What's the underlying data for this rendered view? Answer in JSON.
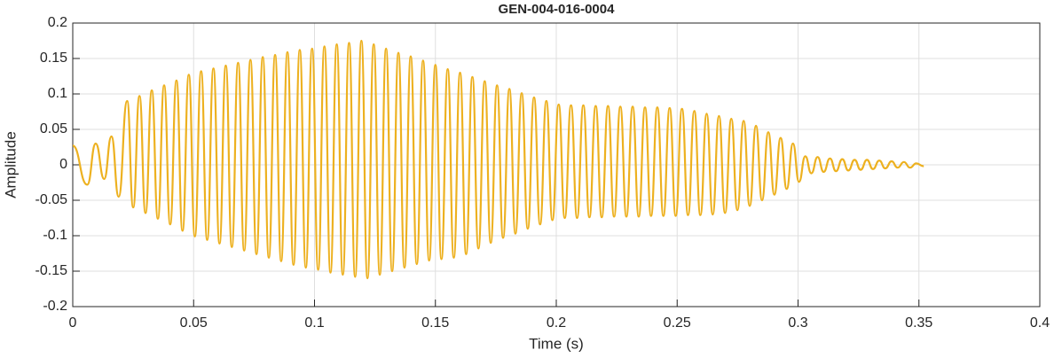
{
  "chart_data": {
    "type": "line",
    "title": "GEN-004-016-0004",
    "xlabel": "Time (s)",
    "ylabel": "Amplitude",
    "xlim": [
      0,
      0.4
    ],
    "xticks": [
      0,
      0.05,
      0.1,
      0.15,
      0.2,
      0.25,
      0.3,
      0.35,
      0.4
    ],
    "ylim": [
      -0.2,
      0.2
    ],
    "yticks": [
      -0.2,
      -0.15,
      -0.1,
      -0.05,
      0,
      0.05,
      0.1,
      0.15,
      0.2
    ],
    "grid": true,
    "series": [
      {
        "color": "#EDB120",
        "x": [
          0,
          0.006,
          0.0095,
          0.013,
          0.016,
          0.019,
          0.0225,
          0.025,
          0.0276,
          0.0301,
          0.0327,
          0.0352,
          0.0378,
          0.0403,
          0.0429,
          0.0454,
          0.048,
          0.0505,
          0.0531,
          0.0556,
          0.0582,
          0.0607,
          0.0633,
          0.0658,
          0.0684,
          0.0709,
          0.0735,
          0.076,
          0.0786,
          0.0811,
          0.0837,
          0.0862,
          0.0888,
          0.0913,
          0.0939,
          0.0964,
          0.099,
          0.1015,
          0.1041,
          0.1066,
          0.1092,
          0.1117,
          0.1143,
          0.1168,
          0.1194,
          0.1219,
          0.1245,
          0.127,
          0.1296,
          0.1321,
          0.1347,
          0.1372,
          0.1398,
          0.1423,
          0.1449,
          0.1474,
          0.15,
          0.1525,
          0.1551,
          0.1576,
          0.1602,
          0.1627,
          0.1653,
          0.1678,
          0.1704,
          0.1729,
          0.1755,
          0.178,
          0.1806,
          0.1831,
          0.1857,
          0.1882,
          0.1908,
          0.1933,
          0.1959,
          0.1984,
          0.201,
          0.2035,
          0.2061,
          0.2086,
          0.2112,
          0.2137,
          0.2163,
          0.2188,
          0.2214,
          0.2239,
          0.2265,
          0.229,
          0.2316,
          0.2341,
          0.2367,
          0.2392,
          0.2418,
          0.2443,
          0.2469,
          0.2494,
          0.252,
          0.2545,
          0.2571,
          0.2596,
          0.2622,
          0.2647,
          0.2673,
          0.2698,
          0.2724,
          0.2749,
          0.2775,
          0.28,
          0.2826,
          0.2851,
          0.2877,
          0.2902,
          0.2928,
          0.2953,
          0.2979,
          0.3004,
          0.303,
          0.3055,
          0.3081,
          0.3106,
          0.3132,
          0.3157,
          0.3183,
          0.3208,
          0.3234,
          0.3259,
          0.3285,
          0.331,
          0.3336,
          0.3361,
          0.3387,
          0.3412,
          0.3438,
          0.3463,
          0.3489,
          0.352
        ],
        "values": [
          0.027,
          -0.028,
          0.03,
          -0.02,
          0.04,
          -0.045,
          0.09,
          -0.06,
          0.097,
          -0.068,
          0.105,
          -0.076,
          0.112,
          -0.084,
          0.119,
          -0.093,
          0.127,
          -0.101,
          0.132,
          -0.106,
          0.136,
          -0.111,
          0.14,
          -0.116,
          0.144,
          -0.121,
          0.148,
          -0.126,
          0.152,
          -0.131,
          0.155,
          -0.136,
          0.159,
          -0.141,
          0.162,
          -0.145,
          0.164,
          -0.148,
          0.167,
          -0.152,
          0.17,
          -0.155,
          0.172,
          -0.158,
          0.175,
          -0.16,
          0.17,
          -0.155,
          0.164,
          -0.15,
          0.158,
          -0.145,
          0.153,
          -0.14,
          0.147,
          -0.135,
          0.141,
          -0.133,
          0.135,
          -0.131,
          0.13,
          -0.126,
          0.124,
          -0.118,
          0.118,
          -0.11,
          0.112,
          -0.103,
          0.107,
          -0.097,
          0.101,
          -0.09,
          0.095,
          -0.084,
          0.09,
          -0.078,
          0.085,
          -0.075,
          0.084,
          -0.075,
          0.084,
          -0.074,
          0.083,
          -0.074,
          0.083,
          -0.073,
          0.082,
          -0.073,
          0.082,
          -0.073,
          0.081,
          -0.072,
          0.081,
          -0.072,
          0.08,
          -0.072,
          0.079,
          -0.071,
          0.076,
          -0.071,
          0.072,
          -0.07,
          0.069,
          -0.068,
          0.065,
          -0.064,
          0.062,
          -0.058,
          0.055,
          -0.05,
          0.046,
          -0.042,
          0.038,
          -0.034,
          0.03,
          -0.024,
          0.012,
          -0.012,
          0.011,
          -0.01,
          0.009,
          -0.009,
          0.008,
          -0.008,
          0.007,
          -0.007,
          0.007,
          -0.006,
          0.006,
          -0.005,
          0.005,
          -0.004,
          0.004,
          -0.004,
          0.002,
          -0.002
        ]
      }
    ]
  }
}
